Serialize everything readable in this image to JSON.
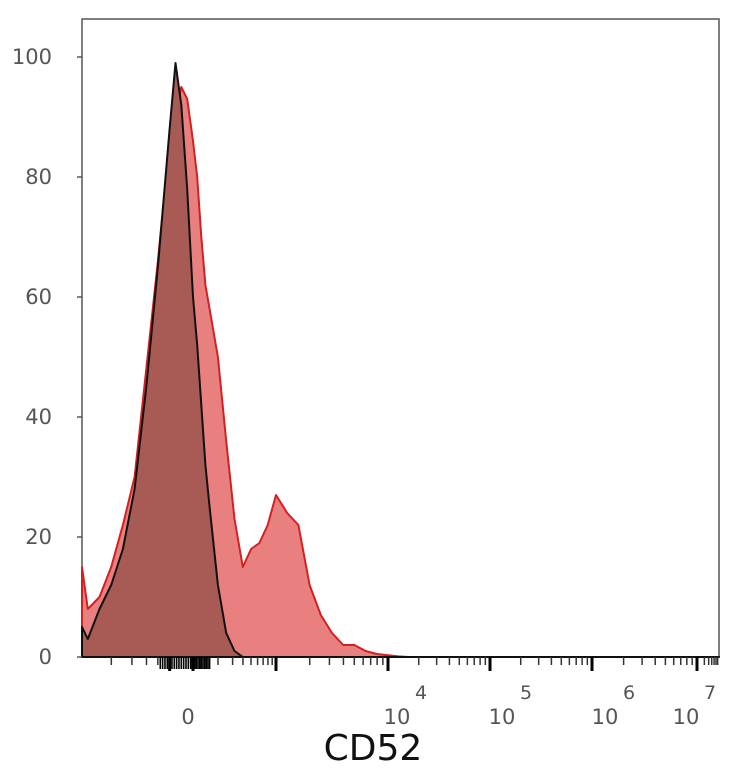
{
  "chart_data": {
    "type": "area",
    "xlabel": "CD52",
    "ylabel": "",
    "ylim": [
      0,
      100
    ],
    "y_ticks": [
      "0",
      "20",
      "40",
      "60",
      "80",
      "100"
    ],
    "x_scale": "biexponential",
    "x_ticks": [
      {
        "base": "0",
        "exp": ""
      },
      {
        "base": "10",
        "exp": "4"
      },
      {
        "base": "10",
        "exp": "5"
      },
      {
        "base": "10",
        "exp": "6"
      },
      {
        "base": "10",
        "exp": "7"
      }
    ],
    "grid": false,
    "legend": "none",
    "series": [
      {
        "color": "#d42020",
        "fill": "#e98080",
        "x": [
          -0.95,
          -0.9,
          -0.8,
          -0.7,
          -0.6,
          -0.5,
          -0.4,
          -0.3,
          -0.2,
          -0.15,
          -0.1,
          -0.05,
          0.0,
          0.05,
          0.1,
          0.15,
          0.2,
          0.3,
          0.4,
          0.5,
          0.6,
          0.7,
          0.8,
          0.9,
          1.0,
          1.1,
          1.2,
          1.3,
          1.4,
          1.5,
          1.6,
          1.7,
          1.8,
          1.9,
          2.0,
          2.1,
          2.2,
          2.3,
          2.4,
          2.5,
          2.6,
          2.8,
          3.0,
          3.5,
          4.0,
          5.0,
          5.9
        ],
        "y": [
          15,
          8,
          10,
          15,
          22,
          30,
          48,
          66,
          86,
          90,
          95,
          93,
          86,
          80,
          70,
          62,
          58,
          50,
          36,
          23,
          15,
          18,
          19,
          22,
          27,
          24,
          22,
          12,
          7,
          4,
          2,
          2,
          1,
          0.5,
          0.3,
          0.1,
          0,
          0,
          0,
          0,
          0,
          0,
          0,
          0,
          0,
          0,
          0
        ]
      },
      {
        "color": "#111111",
        "fill": "#a85a55",
        "x": [
          -0.95,
          -0.9,
          -0.8,
          -0.7,
          -0.6,
          -0.5,
          -0.4,
          -0.3,
          -0.2,
          -0.15,
          -0.1,
          -0.05,
          0.0,
          0.05,
          0.1,
          0.15,
          0.2,
          0.3,
          0.4,
          0.5,
          0.6,
          0.7,
          0.8,
          0.9,
          1.0,
          1.1,
          1.2,
          5.9
        ],
        "y": [
          5,
          3,
          8,
          12,
          18,
          28,
          45,
          65,
          88,
          99,
          92,
          78,
          60,
          52,
          42,
          32,
          25,
          12,
          4,
          1,
          0,
          0,
          0,
          0,
          0,
          0,
          0,
          0
        ]
      }
    ]
  }
}
